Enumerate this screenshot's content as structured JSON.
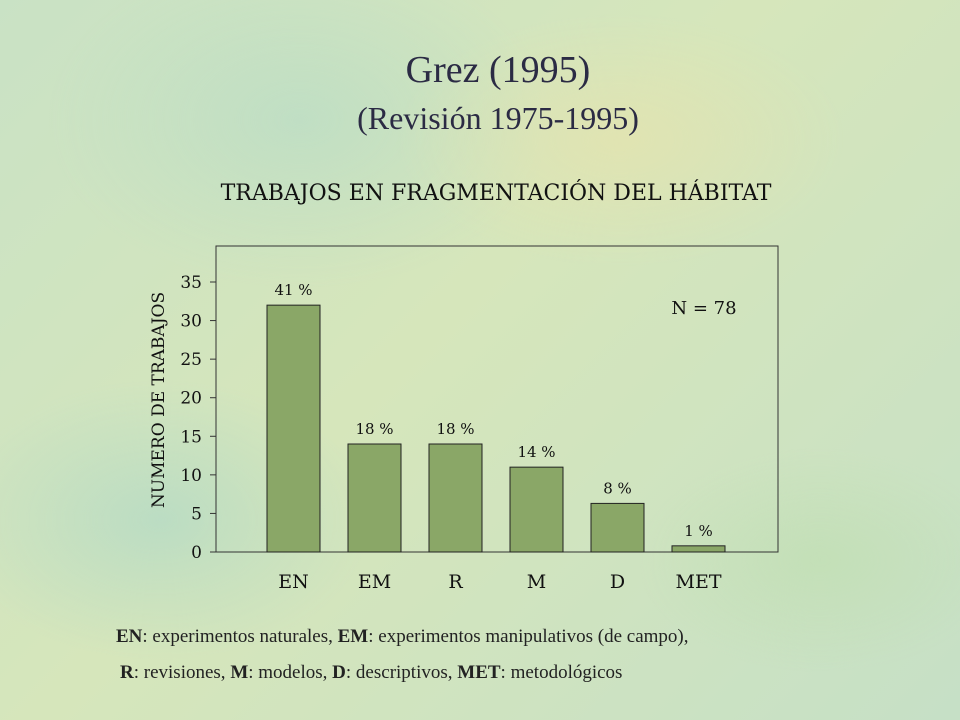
{
  "slide": {
    "title": "Grez (1995)",
    "subtitle": "(Revisión  1975-1995)"
  },
  "chart_data": {
    "type": "bar",
    "title": "TRABAJOS EN FRAGMENTACIÓN DEL HÁBITAT",
    "xlabel": "",
    "ylabel": "NUMERO DE TRABAJOS",
    "categories": [
      "EN",
      "EM",
      "R",
      "M",
      "D",
      "MET"
    ],
    "values": [
      32,
      14,
      14,
      11,
      6.3,
      0.8
    ],
    "data_labels": [
      "41 %",
      "18 %",
      "18 %",
      "14 %",
      "8 %",
      "1 %"
    ],
    "ylim": [
      0,
      35
    ],
    "yticks": [
      "0",
      "5",
      "10",
      "15",
      "20",
      "25",
      "30",
      "35"
    ],
    "annotation": "N = 78",
    "grid": false,
    "bar_color": "#8aa767"
  },
  "legend": {
    "line1": [
      {
        "abbr": "EN",
        "text": ": experimentos naturales, "
      },
      {
        "abbr": "EM",
        "text": ": experimentos manipulativos (de campo),"
      }
    ],
    "line2": [
      {
        "abbr": "R",
        "text": ": revisiones, "
      },
      {
        "abbr": "M",
        "text": ": modelos, "
      },
      {
        "abbr": "D",
        "text": ": descriptivos, "
      },
      {
        "abbr": "MET",
        "text": ": metodológicos"
      }
    ]
  }
}
